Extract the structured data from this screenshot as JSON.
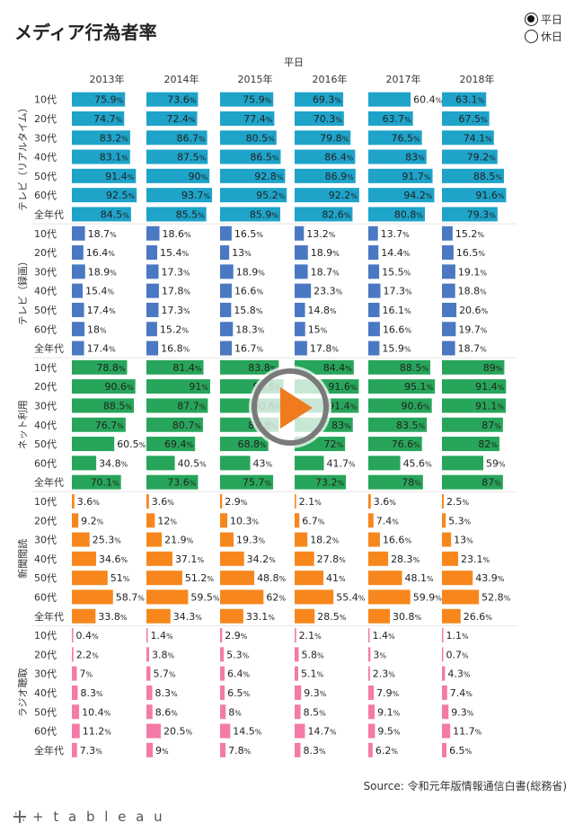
{
  "title": "メディア行為者率",
  "radio": {
    "options": [
      "平日",
      "休日"
    ],
    "selected": "平日"
  },
  "source": "Source: 令和元年版情報通信白書(総務省)",
  "logo": "+ t a b l e a u",
  "colors": {
    "テレビ（リアルタイム）": "#1ea3c9",
    "テレビ（録画）": "#4a78c2",
    "ネット利用": "#27a55a",
    "新聞閲読": "#f7871d",
    "ラジオ聴取": "#f47aa8"
  },
  "chart_data": {
    "type": "bar",
    "title": "平日",
    "columns": [
      "2013年",
      "2014年",
      "2015年",
      "2016年",
      "2017年",
      "2018年"
    ],
    "age_groups": [
      "10代",
      "20代",
      "30代",
      "40代",
      "50代",
      "60代",
      "全年代"
    ],
    "unit": "%",
    "xlim": [
      0,
      100
    ],
    "groups": [
      {
        "name": "テレビ（リアルタイム）",
        "values": [
          [
            75.9,
            73.6,
            75.9,
            69.3,
            60.4,
            63.1
          ],
          [
            74.7,
            72.4,
            77.4,
            70.3,
            63.7,
            67.5
          ],
          [
            83.2,
            86.7,
            80.5,
            79.8,
            76.5,
            74.1
          ],
          [
            83.1,
            87.5,
            86.5,
            86.4,
            83,
            79.2
          ],
          [
            91.4,
            90,
            92.8,
            86.9,
            91.7,
            88.5
          ],
          [
            92.5,
            93.7,
            95.2,
            92.2,
            94.2,
            91.6
          ],
          [
            84.5,
            85.5,
            85.9,
            82.6,
            80.8,
            79.3
          ]
        ]
      },
      {
        "name": "テレビ（録画）",
        "values": [
          [
            18.7,
            18.6,
            16.5,
            13.2,
            13.7,
            15.2
          ],
          [
            16.4,
            15.4,
            13,
            18.9,
            14.4,
            16.5
          ],
          [
            18.9,
            17.3,
            18.9,
            18.7,
            15.5,
            19.1
          ],
          [
            15.4,
            17.8,
            16.6,
            23.3,
            17.3,
            18.8
          ],
          [
            17.4,
            17.3,
            15.8,
            14.8,
            16.1,
            20.6
          ],
          [
            18,
            15.2,
            18.3,
            15,
            16.6,
            19.7
          ],
          [
            17.4,
            16.8,
            16.7,
            17.8,
            15.9,
            18.7
          ]
        ]
      },
      {
        "name": "ネット利用",
        "values": [
          [
            78.8,
            81.4,
            83.8,
            84.4,
            88.5,
            89
          ],
          [
            90.6,
            91,
            90.6,
            91.6,
            95.1,
            91.4
          ],
          [
            88.5,
            87.7,
            90.6,
            91.4,
            90.6,
            91.1
          ],
          [
            76.7,
            80.7,
            83.8,
            83.0,
            83.5,
            87
          ],
          [
            60.5,
            69.4,
            68.8,
            72.0,
            76.6,
            82
          ],
          [
            34.8,
            40.5,
            43,
            41.7,
            45.6,
            59
          ],
          [
            70.1,
            73.6,
            75.7,
            73.2,
            78,
            87
          ]
        ]
      },
      {
        "name": "新聞閲読",
        "values": [
          [
            3.6,
            3.6,
            2.9,
            2.1,
            3.6,
            2.5
          ],
          [
            9.2,
            12,
            10.3,
            6.7,
            7.4,
            5.3
          ],
          [
            25.3,
            21.9,
            19.3,
            18.2,
            16.6,
            13
          ],
          [
            34.6,
            37.1,
            34.2,
            27.8,
            28.3,
            23.1
          ],
          [
            51,
            51.2,
            48.8,
            41,
            48.1,
            43.9
          ],
          [
            58.7,
            59.5,
            62,
            55.4,
            59.9,
            52.8
          ],
          [
            33.8,
            34.3,
            33.1,
            28.5,
            30.8,
            26.6
          ]
        ]
      },
      {
        "name": "ラジオ聴取",
        "values": [
          [
            0.4,
            1.4,
            2.9,
            2.1,
            1.4,
            1.1
          ],
          [
            2.2,
            3.8,
            5.3,
            5.8,
            3,
            0.7
          ],
          [
            7,
            5.7,
            6.4,
            5.1,
            2.3,
            4.3
          ],
          [
            8.3,
            8.3,
            6.5,
            9.3,
            7.9,
            7.4
          ],
          [
            10.4,
            8.6,
            8,
            8.5,
            9.1,
            9.3
          ],
          [
            11.2,
            20.5,
            14.5,
            14.7,
            9.5,
            11.7
          ],
          [
            7.3,
            9,
            7.8,
            8.3,
            6.2,
            6.5
          ]
        ]
      }
    ]
  }
}
